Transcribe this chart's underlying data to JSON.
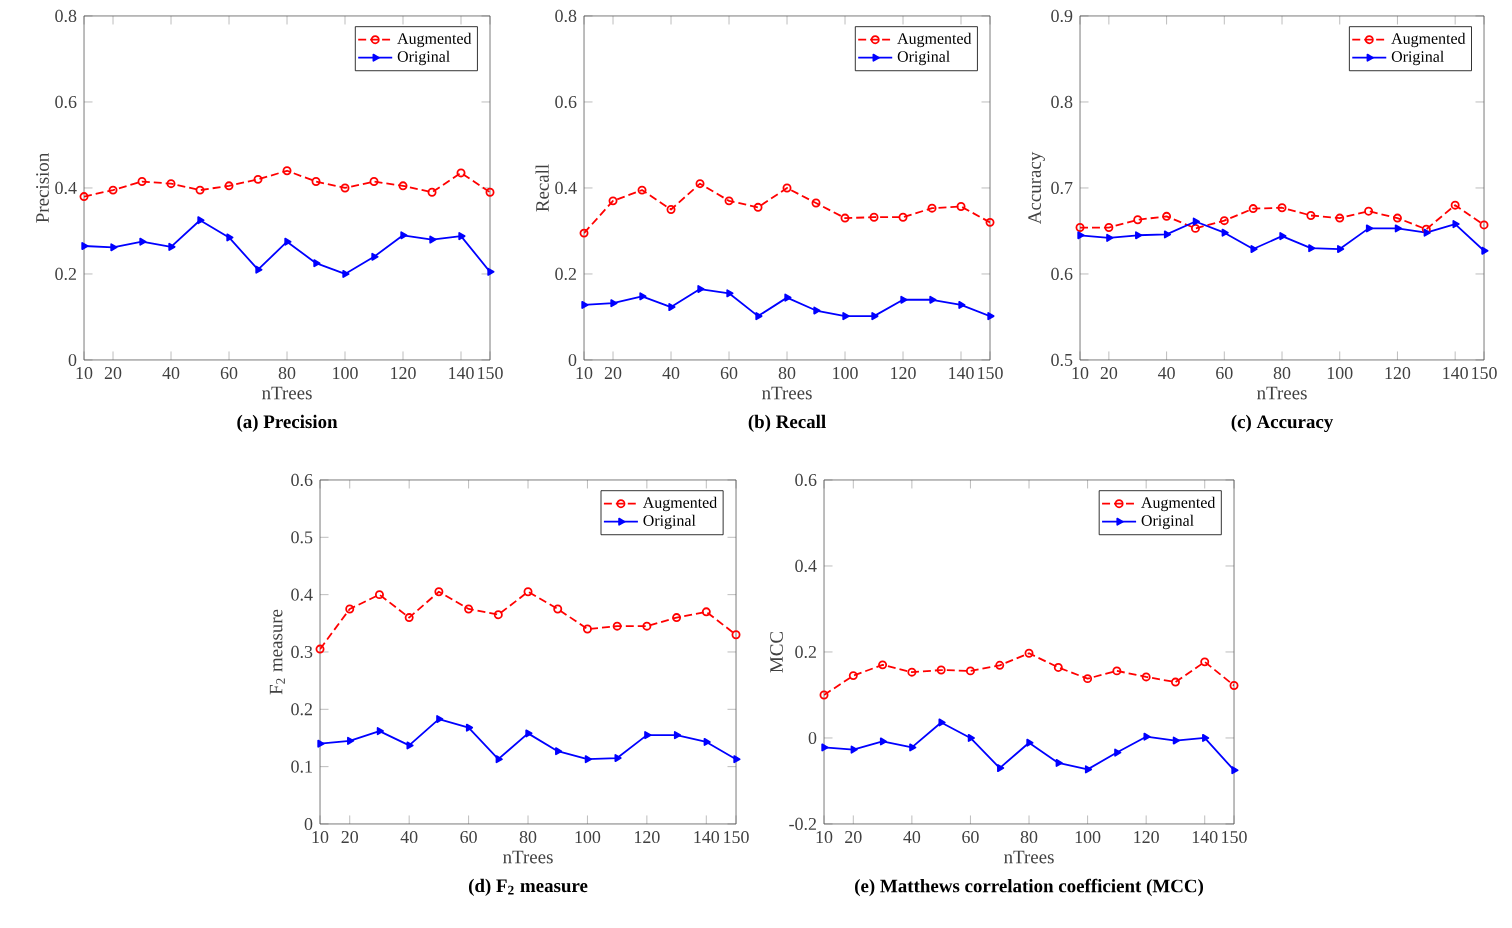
{
  "chart_data": [
    {
      "type": "line",
      "title": "(a) Precision",
      "xlabel": "nTrees",
      "ylabel": "Precision",
      "x": [
        10,
        20,
        30,
        40,
        50,
        60,
        70,
        80,
        90,
        100,
        110,
        120,
        130,
        140,
        150
      ],
      "xlim": [
        10,
        150
      ],
      "xticks": [
        10,
        20,
        40,
        60,
        80,
        100,
        120,
        140,
        150
      ],
      "ylim": [
        0,
        0.8
      ],
      "yticks": [
        0,
        0.2,
        0.4,
        0.6,
        0.8
      ],
      "legend": "top right",
      "series": [
        {
          "name": "Augmented",
          "color": "#ff0000",
          "marker": "circle",
          "line_style": "dashed",
          "values": [
            0.38,
            0.395,
            0.415,
            0.41,
            0.395,
            0.405,
            0.42,
            0.44,
            0.415,
            0.4,
            0.415,
            0.405,
            0.39,
            0.435,
            0.39
          ]
        },
        {
          "name": "Original",
          "color": "#0000ff",
          "marker": "triangle",
          "line_style": "solid",
          "values": [
            0.265,
            0.262,
            0.275,
            0.263,
            0.325,
            0.285,
            0.21,
            0.275,
            0.225,
            0.2,
            0.24,
            0.29,
            0.28,
            0.288,
            0.205
          ]
        }
      ]
    },
    {
      "type": "line",
      "title": "(b) Recall",
      "xlabel": "nTrees",
      "ylabel": "Recall",
      "x": [
        10,
        20,
        30,
        40,
        50,
        60,
        70,
        80,
        90,
        100,
        110,
        120,
        130,
        140,
        150
      ],
      "xlim": [
        10,
        150
      ],
      "xticks": [
        10,
        20,
        40,
        60,
        80,
        100,
        120,
        140,
        150
      ],
      "ylim": [
        0,
        0.8
      ],
      "yticks": [
        0,
        0.2,
        0.4,
        0.6,
        0.8
      ],
      "legend": "top right",
      "series": [
        {
          "name": "Augmented",
          "color": "#ff0000",
          "marker": "circle",
          "line_style": "dashed",
          "values": [
            0.295,
            0.37,
            0.395,
            0.35,
            0.41,
            0.37,
            0.355,
            0.4,
            0.365,
            0.33,
            0.332,
            0.332,
            0.353,
            0.357,
            0.32
          ]
        },
        {
          "name": "Original",
          "color": "#0000ff",
          "marker": "triangle",
          "line_style": "solid",
          "values": [
            0.128,
            0.132,
            0.148,
            0.123,
            0.165,
            0.155,
            0.102,
            0.145,
            0.115,
            0.102,
            0.102,
            0.14,
            0.14,
            0.128,
            0.102
          ]
        }
      ]
    },
    {
      "type": "line",
      "title": "(c) Accuracy",
      "xlabel": "nTrees",
      "ylabel": "Accuracy",
      "x": [
        10,
        20,
        30,
        40,
        50,
        60,
        70,
        80,
        90,
        100,
        110,
        120,
        130,
        140,
        150
      ],
      "xlim": [
        10,
        150
      ],
      "xticks": [
        10,
        20,
        40,
        60,
        80,
        100,
        120,
        140,
        150
      ],
      "ylim": [
        0.5,
        0.9
      ],
      "yticks": [
        0.5,
        0.6,
        0.7,
        0.8,
        0.9
      ],
      "legend": "top right",
      "series": [
        {
          "name": "Augmented",
          "color": "#ff0000",
          "marker": "circle",
          "line_style": "dashed",
          "values": [
            0.654,
            0.654,
            0.663,
            0.667,
            0.653,
            0.662,
            0.676,
            0.677,
            0.668,
            0.665,
            0.673,
            0.665,
            0.652,
            0.68,
            0.657
          ]
        },
        {
          "name": "Original",
          "color": "#0000ff",
          "marker": "triangle",
          "line_style": "solid",
          "values": [
            0.645,
            0.642,
            0.645,
            0.646,
            0.661,
            0.648,
            0.629,
            0.644,
            0.63,
            0.629,
            0.653,
            0.653,
            0.648,
            0.658,
            0.627
          ]
        }
      ]
    },
    {
      "type": "line",
      "title": "(d) F$_{2}$ measure",
      "xlabel": "nTrees",
      "ylabel": "F$_{2}$ measure",
      "x": [
        10,
        20,
        30,
        40,
        50,
        60,
        70,
        80,
        90,
        100,
        110,
        120,
        130,
        140,
        150
      ],
      "xlim": [
        10,
        150
      ],
      "xticks": [
        10,
        20,
        40,
        60,
        80,
        100,
        120,
        140,
        150
      ],
      "ylim": [
        0,
        0.6
      ],
      "yticks": [
        0,
        0.1,
        0.2,
        0.3,
        0.4,
        0.5,
        0.6
      ],
      "legend": "top right",
      "series": [
        {
          "name": "Augmented",
          "color": "#ff0000",
          "marker": "circle",
          "line_style": "dashed",
          "values": [
            0.305,
            0.375,
            0.4,
            0.36,
            0.405,
            0.375,
            0.365,
            0.405,
            0.375,
            0.34,
            0.345,
            0.345,
            0.36,
            0.37,
            0.33
          ]
        },
        {
          "name": "Original",
          "color": "#0000ff",
          "marker": "triangle",
          "line_style": "solid",
          "values": [
            0.14,
            0.145,
            0.162,
            0.137,
            0.183,
            0.168,
            0.113,
            0.158,
            0.127,
            0.113,
            0.115,
            0.155,
            0.155,
            0.143,
            0.113
          ]
        }
      ]
    },
    {
      "type": "line",
      "title": "(e) Matthews correlation coefficient (MCC)",
      "xlabel": "nTrees",
      "ylabel": "MCC",
      "x": [
        10,
        20,
        30,
        40,
        50,
        60,
        70,
        80,
        90,
        100,
        110,
        120,
        130,
        140,
        150
      ],
      "xlim": [
        10,
        150
      ],
      "xticks": [
        10,
        20,
        40,
        60,
        80,
        100,
        120,
        140,
        150
      ],
      "ylim": [
        -0.2,
        0.6
      ],
      "yticks": [
        -0.2,
        0,
        0.2,
        0.4,
        0.6
      ],
      "legend": "top right",
      "series": [
        {
          "name": "Augmented",
          "color": "#ff0000",
          "marker": "circle",
          "line_style": "dashed",
          "values": [
            0.1,
            0.145,
            0.17,
            0.153,
            0.158,
            0.156,
            0.169,
            0.197,
            0.164,
            0.138,
            0.156,
            0.142,
            0.13,
            0.177,
            0.122
          ]
        },
        {
          "name": "Original",
          "color": "#0000ff",
          "marker": "triangle",
          "line_style": "solid",
          "values": [
            -0.022,
            -0.027,
            -0.008,
            -0.022,
            0.036,
            0,
            -0.07,
            -0.011,
            -0.058,
            -0.073,
            -0.034,
            0.003,
            -0.006,
            0,
            -0.075
          ]
        }
      ]
    }
  ]
}
